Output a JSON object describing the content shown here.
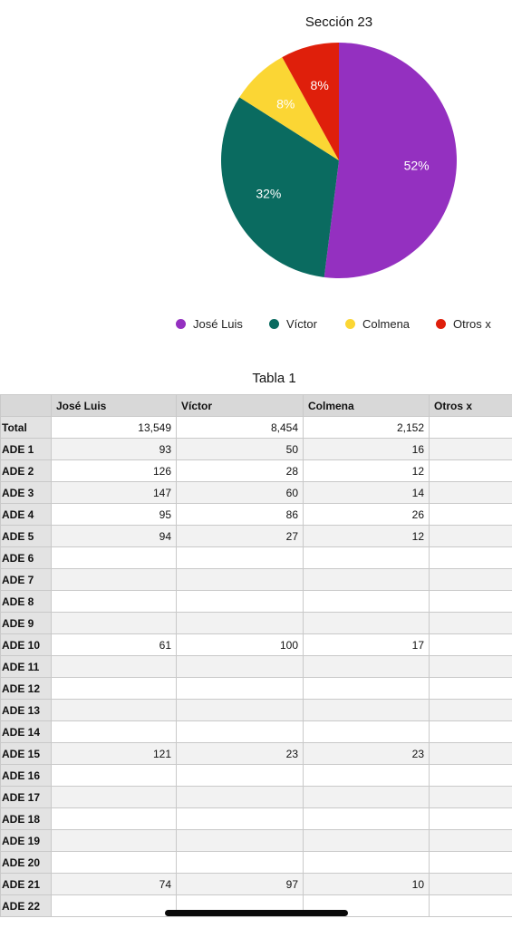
{
  "chart_data": {
    "type": "pie",
    "title": "Sección 23",
    "slices": [
      {
        "label": "José Luis",
        "value": 52,
        "display": "52%",
        "color": "#9430c0"
      },
      {
        "label": "Víctor",
        "value": 32,
        "display": "32%",
        "color": "#0a6b60"
      },
      {
        "label": "Colmena",
        "value": 8,
        "display": "8%",
        "color": "#fbd634"
      },
      {
        "label": "Otros x",
        "value": 8,
        "display": "8%",
        "color": "#df1f0b"
      }
    ],
    "legend_position": "bottom"
  },
  "table": {
    "title": "Tabla 1",
    "columns": [
      "José Luis",
      "Víctor",
      "Colmena",
      "Otros x"
    ],
    "rows": [
      {
        "label": "Total",
        "values": [
          "13,549",
          "8,454",
          "2,152",
          ""
        ]
      },
      {
        "label": "ADE 1",
        "values": [
          "93",
          "50",
          "16",
          ""
        ]
      },
      {
        "label": "ADE 2",
        "values": [
          "126",
          "28",
          "12",
          ""
        ]
      },
      {
        "label": "ADE 3",
        "values": [
          "147",
          "60",
          "14",
          ""
        ]
      },
      {
        "label": "ADE 4",
        "values": [
          "95",
          "86",
          "26",
          ""
        ]
      },
      {
        "label": "ADE 5",
        "values": [
          "94",
          "27",
          "12",
          ""
        ]
      },
      {
        "label": "ADE 6",
        "values": [
          "",
          "",
          "",
          ""
        ]
      },
      {
        "label": "ADE 7",
        "values": [
          "",
          "",
          "",
          ""
        ]
      },
      {
        "label": "ADE 8",
        "values": [
          "",
          "",
          "",
          ""
        ]
      },
      {
        "label": "ADE 9",
        "values": [
          "",
          "",
          "",
          ""
        ]
      },
      {
        "label": "ADE 10",
        "values": [
          "61",
          "100",
          "17",
          ""
        ]
      },
      {
        "label": "ADE 11",
        "values": [
          "",
          "",
          "",
          ""
        ]
      },
      {
        "label": "ADE 12",
        "values": [
          "",
          "",
          "",
          ""
        ]
      },
      {
        "label": "ADE 13",
        "values": [
          "",
          "",
          "",
          ""
        ]
      },
      {
        "label": "ADE 14",
        "values": [
          "",
          "",
          "",
          ""
        ]
      },
      {
        "label": "ADE 15",
        "values": [
          "121",
          "23",
          "23",
          ""
        ]
      },
      {
        "label": "ADE 16",
        "values": [
          "",
          "",
          "",
          ""
        ]
      },
      {
        "label": "ADE 17",
        "values": [
          "",
          "",
          "",
          ""
        ]
      },
      {
        "label": "ADE 18",
        "values": [
          "",
          "",
          "",
          ""
        ]
      },
      {
        "label": "ADE 19",
        "values": [
          "",
          "",
          "",
          ""
        ]
      },
      {
        "label": "ADE 20",
        "values": [
          "",
          "",
          "",
          ""
        ]
      },
      {
        "label": "ADE 21",
        "values": [
          "74",
          "97",
          "10",
          ""
        ]
      },
      {
        "label": "ADE 22",
        "values": [
          "",
          "",
          "",
          ""
        ]
      }
    ]
  }
}
